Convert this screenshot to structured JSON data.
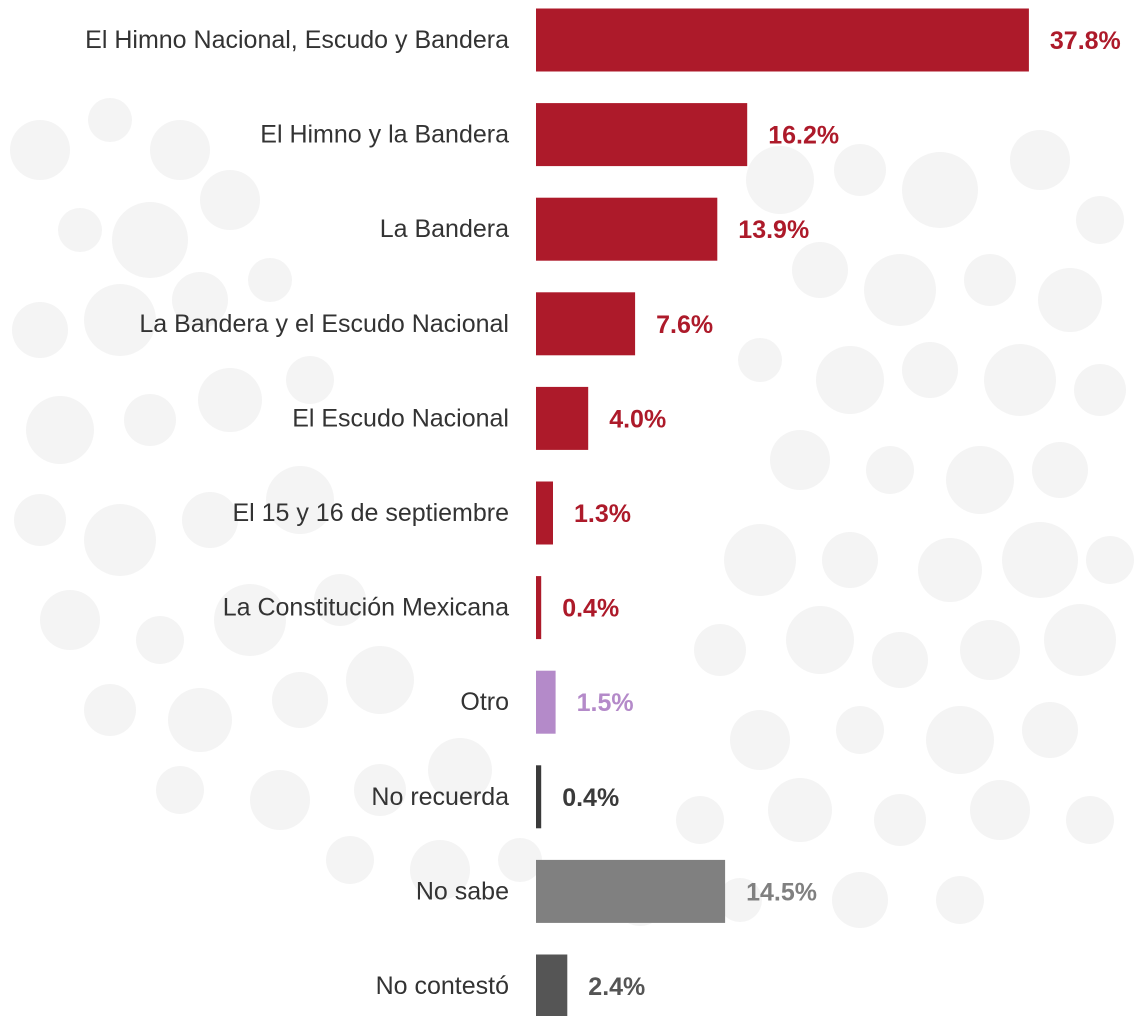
{
  "chart_data": {
    "type": "bar",
    "orientation": "horizontal",
    "categories": [
      "El Himno Nacional, Escudo y Bandera",
      "El Himno y la Bandera",
      "La Bandera",
      "La Bandera y el Escudo Nacional",
      "El Escudo Nacional",
      "El 15 y 16 de septiembre",
      "La Constitución Mexicana",
      "Otro",
      "No recuerda",
      "No sabe",
      "No contestó"
    ],
    "values": [
      37.8,
      16.2,
      13.9,
      7.6,
      4.0,
      1.3,
      0.4,
      1.5,
      0.4,
      14.5,
      2.4
    ],
    "value_labels": [
      "37.8%",
      "16.2%",
      "13.9%",
      "7.6%",
      "4.0%",
      "1.3%",
      "0.4%",
      "1.5%",
      "0.4%",
      "14.5%",
      "2.4%"
    ],
    "bar_colors": [
      "#ad1a2a",
      "#ad1a2a",
      "#ad1a2a",
      "#ad1a2a",
      "#ad1a2a",
      "#ad1a2a",
      "#ad1a2a",
      "#b48ac9",
      "#3a3a3a",
      "#808080",
      "#555555"
    ],
    "label_colors": [
      "#ad1a2a",
      "#ad1a2a",
      "#ad1a2a",
      "#ad1a2a",
      "#ad1a2a",
      "#ad1a2a",
      "#ad1a2a",
      "#b48ac9",
      "#3a3a3a",
      "#808080",
      "#555555"
    ],
    "category_text_color": "#333333",
    "background_pattern_color": "#f2f2f2",
    "title": "",
    "xlabel": "",
    "ylabel": "",
    "grid": false,
    "legend": "none"
  }
}
